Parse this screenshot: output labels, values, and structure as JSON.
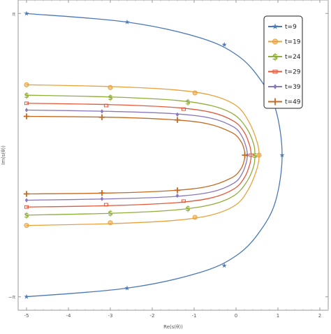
{
  "chart_data": {
    "type": "line",
    "title": "",
    "xlabel": "Re(s(θ))",
    "ylabel": "Im(s(θ))",
    "xlim": [
      -5.2,
      2.2
    ],
    "ylim": [
      -3.44,
      3.44
    ],
    "grid": false,
    "legend_position": "top-right",
    "x_ticks": [
      {
        "value": -5,
        "label": "-5"
      },
      {
        "value": -4,
        "label": "-4"
      },
      {
        "value": -3,
        "label": "-3"
      },
      {
        "value": -2,
        "label": "-2"
      },
      {
        "value": -1,
        "label": "-1"
      },
      {
        "value": 0,
        "label": "0"
      },
      {
        "value": 1,
        "label": "1"
      },
      {
        "value": 2,
        "label": "2"
      }
    ],
    "y_ticks": [
      {
        "value": 3.14159,
        "label": "π"
      },
      {
        "value": -3.14159,
        "label": "−π"
      }
    ],
    "series": [
      {
        "name": "t=9",
        "color": "#4a78b8",
        "marker": "star",
        "points": [
          [
            -5.0,
            3.14
          ],
          [
            -2.6,
            2.95
          ],
          [
            -0.85,
            2.6
          ],
          [
            0.05,
            2.2
          ],
          [
            0.6,
            1.65
          ],
          [
            0.95,
            1.0
          ],
          [
            1.1,
            0.0
          ],
          [
            0.95,
            -1.0
          ],
          [
            0.6,
            -1.65
          ],
          [
            0.05,
            -2.2
          ],
          [
            -0.85,
            -2.6
          ],
          [
            -2.6,
            -2.95
          ],
          [
            -5.0,
            -3.14
          ]
        ],
        "markers": [
          [
            -5.0,
            3.14
          ],
          [
            -2.6,
            2.95
          ],
          [
            -0.28,
            2.45
          ],
          [
            1.1,
            0.0
          ],
          [
            -0.28,
            -2.45
          ],
          [
            -2.6,
            -2.95
          ],
          [
            -5.0,
            -3.14
          ]
        ]
      },
      {
        "name": "t=19",
        "color": "#e8a23a",
        "marker": "circle",
        "points": [
          [
            -5.0,
            1.56
          ],
          [
            -3.0,
            1.52
          ],
          [
            -1.5,
            1.45
          ],
          [
            -0.6,
            1.33
          ],
          [
            0.0,
            1.1
          ],
          [
            0.3,
            0.75
          ],
          [
            0.5,
            0.3
          ],
          [
            0.55,
            0.0
          ],
          [
            0.5,
            -0.3
          ],
          [
            0.3,
            -0.75
          ],
          [
            0.0,
            -1.1
          ],
          [
            -0.6,
            -1.33
          ],
          [
            -1.5,
            -1.45
          ],
          [
            -3.0,
            -1.52
          ],
          [
            -5.0,
            -1.56
          ]
        ],
        "markers": [
          [
            -5.0,
            1.56
          ],
          [
            -3.0,
            1.5
          ],
          [
            -0.98,
            1.38
          ],
          [
            0.55,
            0.0
          ],
          [
            -0.98,
            -1.38
          ],
          [
            -3.0,
            -1.5
          ],
          [
            -5.0,
            -1.56
          ]
        ]
      },
      {
        "name": "t=24",
        "color": "#8fae3a",
        "marker": "dollar",
        "points": [
          [
            -5.0,
            1.33
          ],
          [
            -3.0,
            1.29
          ],
          [
            -1.5,
            1.22
          ],
          [
            -0.6,
            1.1
          ],
          [
            -0.05,
            0.9
          ],
          [
            0.25,
            0.6
          ],
          [
            0.42,
            0.25
          ],
          [
            0.45,
            0.0
          ],
          [
            0.42,
            -0.25
          ],
          [
            0.25,
            -0.6
          ],
          [
            -0.05,
            -0.9
          ],
          [
            -0.6,
            -1.1
          ],
          [
            -1.5,
            -1.22
          ],
          [
            -3.0,
            -1.29
          ],
          [
            -5.0,
            -1.33
          ]
        ],
        "markers": [
          [
            -5.0,
            1.33
          ],
          [
            -3.0,
            1.28
          ],
          [
            -1.15,
            1.18
          ],
          [
            0.45,
            0.0
          ],
          [
            -1.15,
            -1.18
          ],
          [
            -3.0,
            -1.28
          ],
          [
            -5.0,
            -1.33
          ]
        ]
      },
      {
        "name": "t=29",
        "color": "#e4593a",
        "marker": "square",
        "points": [
          [
            -5.0,
            1.15
          ],
          [
            -3.0,
            1.12
          ],
          [
            -1.5,
            1.06
          ],
          [
            -0.6,
            0.95
          ],
          [
            -0.05,
            0.75
          ],
          [
            0.2,
            0.5
          ],
          [
            0.33,
            0.2
          ],
          [
            0.36,
            0.0
          ],
          [
            0.33,
            -0.2
          ],
          [
            0.2,
            -0.5
          ],
          [
            -0.05,
            -0.75
          ],
          [
            -0.6,
            -0.95
          ],
          [
            -1.5,
            -1.06
          ],
          [
            -3.0,
            -1.12
          ],
          [
            -5.0,
            -1.15
          ]
        ],
        "markers": [
          [
            -5.0,
            1.15
          ],
          [
            -3.1,
            1.1
          ],
          [
            -1.25,
            1.02
          ],
          [
            0.36,
            0.0
          ],
          [
            -1.25,
            -1.02
          ],
          [
            -3.1,
            -1.1
          ],
          [
            -5.0,
            -1.15
          ]
        ]
      },
      {
        "name": "t=39",
        "color": "#8a78be",
        "marker": "diamond",
        "points": [
          [
            -5.0,
            1.0
          ],
          [
            -3.0,
            0.97
          ],
          [
            -1.5,
            0.92
          ],
          [
            -0.6,
            0.82
          ],
          [
            -0.05,
            0.62
          ],
          [
            0.15,
            0.4
          ],
          [
            0.25,
            0.15
          ],
          [
            0.27,
            0.0
          ],
          [
            0.25,
            -0.15
          ],
          [
            0.15,
            -0.4
          ],
          [
            -0.05,
            -0.62
          ],
          [
            -0.6,
            -0.82
          ],
          [
            -1.5,
            -0.92
          ],
          [
            -3.0,
            -0.97
          ],
          [
            -5.0,
            -1.0
          ]
        ],
        "markers": [
          [
            -5.0,
            1.0
          ],
          [
            -3.2,
            0.97
          ],
          [
            -1.4,
            0.9
          ],
          [
            0.27,
            0.0
          ],
          [
            -1.4,
            -0.9
          ],
          [
            -3.2,
            -0.97
          ],
          [
            -5.0,
            -1.0
          ]
        ]
      },
      {
        "name": "t=49",
        "color": "#c46a1f",
        "marker": "plus",
        "points": [
          [
            -5.0,
            0.86
          ],
          [
            -3.0,
            0.84
          ],
          [
            -1.6,
            0.79
          ],
          [
            -0.7,
            0.7
          ],
          [
            -0.1,
            0.5
          ],
          [
            0.12,
            0.3
          ],
          [
            0.2,
            0.1
          ],
          [
            0.21,
            0.0
          ],
          [
            0.2,
            -0.1
          ],
          [
            0.12,
            -0.3
          ],
          [
            -0.1,
            -0.5
          ],
          [
            -0.7,
            -0.7
          ],
          [
            -1.6,
            -0.79
          ],
          [
            -3.0,
            -0.84
          ],
          [
            -5.0,
            -0.86
          ]
        ],
        "markers": [
          [
            -5.0,
            0.86
          ],
          [
            -3.2,
            0.84
          ],
          [
            -1.4,
            0.78
          ],
          [
            0.21,
            0.0
          ],
          [
            -1.4,
            -0.78
          ],
          [
            -3.2,
            -0.84
          ],
          [
            -5.0,
            -0.86
          ]
        ]
      }
    ]
  }
}
